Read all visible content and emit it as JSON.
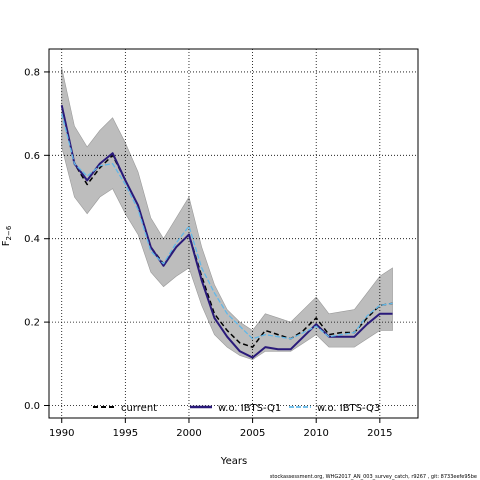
{
  "chart_data": {
    "type": "line",
    "title": "",
    "xlabel": "Years",
    "ylabel": "F",
    "ylabel_sub": "2−6",
    "xlim": [
      1989,
      2018
    ],
    "ylim": [
      -0.03,
      0.855
    ],
    "xticks": [
      1990,
      1995,
      2000,
      2005,
      2010,
      2015
    ],
    "yticks": [
      0.0,
      0.2,
      0.4,
      0.6,
      0.8
    ],
    "ytick_labels": [
      "0.0",
      "0.2",
      "0.4",
      "0.6",
      "0.8"
    ],
    "grid": true,
    "legend_position": "bottom",
    "x": [
      1990,
      1991,
      1992,
      1993,
      1994,
      1995,
      1996,
      1997,
      1998,
      1999,
      2000,
      2001,
      2002,
      2003,
      2004,
      2005,
      2006,
      2007,
      2008,
      2009,
      2010,
      2011,
      2012,
      2013,
      2014,
      2015,
      2016
    ],
    "band": {
      "upper": [
        0.81,
        0.67,
        0.62,
        0.66,
        0.69,
        0.63,
        0.56,
        0.45,
        0.4,
        0.45,
        0.5,
        0.38,
        0.29,
        0.23,
        0.2,
        0.18,
        0.22,
        0.21,
        0.2,
        0.23,
        0.26,
        0.22,
        0.225,
        0.23,
        0.27,
        0.31,
        0.33
      ],
      "lower": [
        0.62,
        0.5,
        0.46,
        0.5,
        0.52,
        0.46,
        0.41,
        0.32,
        0.285,
        0.31,
        0.33,
        0.24,
        0.17,
        0.14,
        0.12,
        0.11,
        0.13,
        0.13,
        0.13,
        0.15,
        0.17,
        0.14,
        0.14,
        0.14,
        0.16,
        0.18,
        0.18
      ]
    },
    "series": [
      {
        "name": "current",
        "color": "#000000",
        "values": [
          0.72,
          0.58,
          0.53,
          0.57,
          0.6,
          0.54,
          0.48,
          0.38,
          0.34,
          0.38,
          0.41,
          0.31,
          0.22,
          0.18,
          0.15,
          0.14,
          0.18,
          0.17,
          0.16,
          0.18,
          0.21,
          0.17,
          0.175,
          0.175,
          0.21,
          0.24,
          0.245
        ]
      },
      {
        "name": "w.o. IBTS-Q1",
        "color": "#2a1a7a",
        "values": [
          0.72,
          0.58,
          0.54,
          0.58,
          0.605,
          0.54,
          0.48,
          0.38,
          0.335,
          0.38,
          0.41,
          0.3,
          0.21,
          0.165,
          0.13,
          0.115,
          0.14,
          0.135,
          0.135,
          0.165,
          0.195,
          0.165,
          0.165,
          0.165,
          0.195,
          0.22,
          0.22
        ]
      },
      {
        "name": "w.o. IBTS-Q3",
        "color": "#62b8e8",
        "values": [
          0.7,
          0.58,
          0.55,
          0.575,
          0.58,
          0.53,
          0.47,
          0.37,
          0.34,
          0.39,
          0.43,
          0.33,
          0.27,
          0.22,
          0.19,
          0.16,
          0.17,
          0.165,
          0.16,
          0.175,
          0.19,
          0.165,
          0.17,
          0.175,
          0.215,
          0.24,
          0.245
        ]
      }
    ]
  },
  "footer": {
    "caption": "stockassessment.org, WHG2017_AN_003_survey_catch, r9267 , git: 8733eefe95be"
  }
}
